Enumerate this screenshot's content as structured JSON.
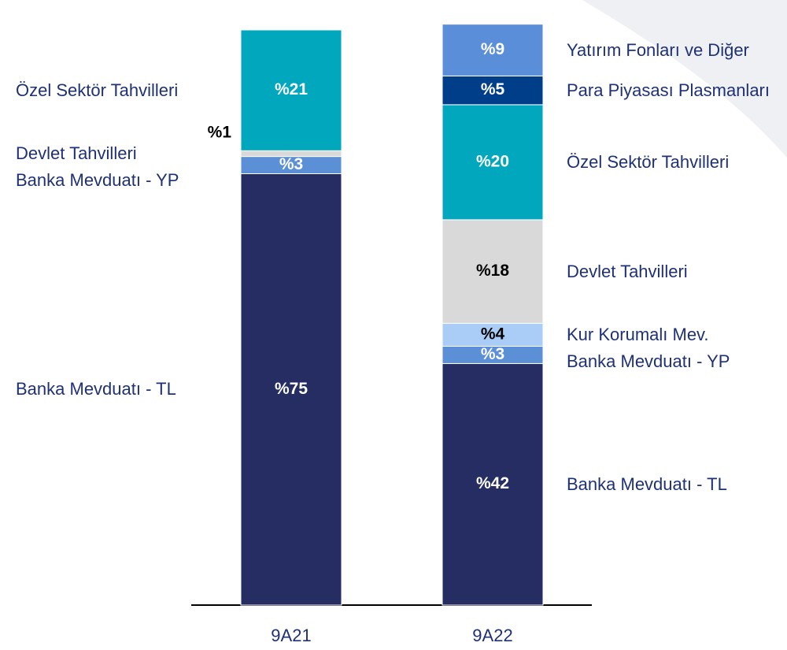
{
  "chart_data": {
    "type": "stacked_bar",
    "categories": [
      "9A21",
      "9A22"
    ],
    "series": [
      {
        "name": "Banka Mevduatı - TL",
        "color": "#252d62",
        "values": [
          75,
          42
        ],
        "value_labels": [
          "%75",
          "%42"
        ]
      },
      {
        "name": "Banka Mevduatı - YP",
        "color": "#5b8fd6",
        "values": [
          3,
          3
        ],
        "value_labels": [
          "%3",
          "%3"
        ]
      },
      {
        "name": "Kur Korumalı Mev.",
        "color": "#a9cdf7",
        "values": [
          null,
          4
        ],
        "value_labels": [
          null,
          "%4"
        ]
      },
      {
        "name": "Devlet Tahvilleri",
        "color": "#d9d9d9",
        "values": [
          1,
          18
        ],
        "value_labels": [
          "%1",
          "%18"
        ]
      },
      {
        "name": "Özel Sektör Tahvilleri",
        "color": "#00a7bd",
        "values": [
          21,
          20
        ],
        "value_labels": [
          "%21",
          "%20"
        ]
      },
      {
        "name": "Para Piyasası Plasmanları",
        "color": "#003e8a",
        "values": [
          null,
          5
        ],
        "value_labels": [
          null,
          "%5"
        ]
      },
      {
        "name": "Yatırım Fonları ve Diğer",
        "color": "#5b8ed8",
        "values": [
          null,
          9
        ],
        "value_labels": [
          null,
          "%9"
        ]
      }
    ]
  }
}
